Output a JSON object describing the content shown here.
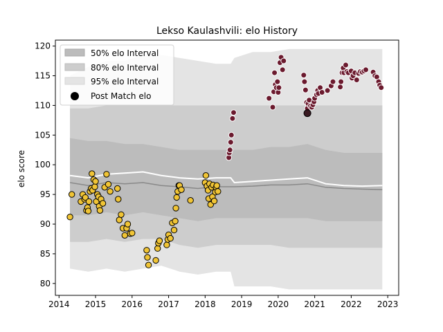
{
  "chart_data": {
    "type": "scatter",
    "title": "Lekso Kaulashvili: elo History",
    "xlabel": "",
    "ylabel": "elo score",
    "xlim": [
      2013.9,
      2023.3
    ],
    "ylim": [
      78,
      121
    ],
    "xticks": [
      2014,
      2015,
      2016,
      2017,
      2018,
      2019,
      2020,
      2021,
      2022,
      2023
    ],
    "yticks": [
      80,
      85,
      90,
      95,
      100,
      105,
      110,
      115,
      120
    ],
    "grid": false,
    "legend": {
      "placement": "top-left",
      "entries": [
        "50% elo Interval",
        "80% elo Interval",
        "95% elo Interval",
        "Post Match elo"
      ]
    },
    "colors": {
      "band95": "#e4e4e4",
      "band80": "#cdcdcd",
      "band50": "#bcbcbc",
      "median_line": "#888888",
      "mean_line": "#ffffff",
      "points_early": "#f0c435",
      "points_late": "#6b1a2e",
      "point_latest": "#3a1a22"
    },
    "bands": {
      "x": [
        2014.3,
        2014.8,
        2015.3,
        2015.8,
        2016.3,
        2016.8,
        2017.3,
        2017.8,
        2018.3,
        2018.7,
        2018.8,
        2019.3,
        2019.8,
        2020.3,
        2020.8,
        2021.3,
        2021.8,
        2022.3,
        2022.85
      ],
      "q025": [
        82.5,
        82.0,
        82.5,
        82.0,
        82.5,
        83.0,
        82.0,
        81.5,
        82.0,
        82.0,
        79.5,
        79.5,
        79.5,
        79.0,
        79.0,
        79.0,
        79.0,
        79.0,
        79.0
      ],
      "q10": [
        87.0,
        87.0,
        87.5,
        87.0,
        87.5,
        87.5,
        86.5,
        86.0,
        86.5,
        86.5,
        86.5,
        86.5,
        86.5,
        86.0,
        86.0,
        86.0,
        86.0,
        86.0,
        86.0
      ],
      "q25": [
        91.5,
        91.5,
        92.0,
        91.5,
        92.0,
        91.5,
        91.0,
        90.5,
        91.0,
        91.0,
        91.0,
        91.0,
        91.0,
        91.0,
        91.0,
        90.5,
        90.5,
        90.5,
        90.5
      ],
      "median": [
        97.0,
        96.5,
        97.0,
        96.8,
        97.0,
        96.5,
        96.3,
        96.0,
        96.3,
        96.3,
        96.3,
        96.4,
        96.6,
        96.6,
        96.8,
        96.2,
        96.0,
        95.9,
        95.8
      ],
      "mean": [
        98.2,
        97.8,
        98.4,
        98.6,
        98.8,
        98.2,
        97.8,
        97.6,
        97.8,
        97.8,
        97.0,
        97.2,
        97.4,
        97.6,
        97.8,
        96.8,
        96.5,
        96.4,
        96.5
      ],
      "q75": [
        104.5,
        104.0,
        104.0,
        103.5,
        103.5,
        103.0,
        102.5,
        102.5,
        102.5,
        102.5,
        102.5,
        102.5,
        103.0,
        103.0,
        103.5,
        102.5,
        102.0,
        102.0,
        102.0
      ],
      "q90": [
        109.5,
        109.5,
        110.0,
        110.0,
        110.0,
        110.0,
        110.0,
        110.0,
        110.0,
        110.0,
        110.0,
        110.0,
        110.0,
        110.0,
        110.0,
        110.0,
        110.0,
        110.0,
        110.0
      ],
      "q975": [
        115.0,
        116.5,
        117.5,
        117.5,
        118.5,
        118.5,
        118.0,
        117.5,
        117.0,
        117.0,
        118.0,
        119.0,
        119.0,
        119.5,
        119.5,
        119.5,
        119.5,
        119.5,
        119.5
      ]
    },
    "series": [
      {
        "x": [
          2014.3,
          2014.35,
          2014.6,
          2014.65,
          2014.7,
          2014.72,
          2014.75,
          2014.78,
          2014.8,
          2014.82,
          2014.85,
          2014.88,
          2014.9,
          2014.92,
          2014.95,
          2014.98,
          2015.0,
          2015.02,
          2015.05,
          2015.08,
          2015.1,
          2015.12,
          2015.15,
          2015.2,
          2015.25,
          2015.3,
          2015.35,
          2015.4,
          2015.6,
          2015.62,
          2015.65,
          2015.7,
          2015.75,
          2015.8,
          2015.85,
          2015.88,
          2015.95,
          2016.0,
          2016.4,
          2016.42,
          2016.45,
          2016.65,
          2016.7,
          2016.72,
          2016.75,
          2016.95,
          2016.98,
          2017.0,
          2017.05,
          2017.1,
          2017.15,
          2017.18,
          2017.2,
          2017.22,
          2017.25,
          2017.28,
          2017.3,
          2017.35,
          2017.6,
          2018.0,
          2018.02,
          2018.05,
          2018.08,
          2018.1,
          2018.12,
          2018.15,
          2018.18,
          2018.2,
          2018.22,
          2018.25,
          2018.28,
          2018.3,
          2018.32,
          2018.35
        ],
        "y": [
          91.2,
          95.0,
          93.8,
          95.0,
          94.2,
          94.5,
          92.3,
          92.8,
          92.2,
          93.8,
          95.5,
          96.0,
          98.5,
          95.7,
          97.5,
          96.3,
          97.2,
          93.8,
          95.0,
          94.6,
          93.0,
          92.3,
          94.2,
          93.5,
          96.2,
          98.4,
          96.7,
          95.5,
          96.0,
          94.2,
          90.7,
          91.6,
          89.3,
          88.1,
          89.3,
          90.0,
          88.4,
          88.5,
          85.6,
          84.4,
          83.1,
          83.9,
          85.9,
          86.8,
          87.2,
          86.5,
          87.4,
          88.2,
          87.6,
          90.2,
          89.0,
          90.5,
          92.7,
          94.5,
          95.5,
          96.5,
          96.5,
          95.8,
          94.0,
          97.0,
          98.2,
          96.4,
          95.7,
          94.3,
          96.8,
          93.3,
          96.2,
          94.6,
          96.6,
          93.9,
          95.4,
          96.2,
          96.5,
          95.5
        ]
      },
      {
        "x": [
          2018.65,
          2018.66,
          2018.68,
          2018.7,
          2018.72,
          2018.75,
          2018.78,
          2019.75,
          2019.85,
          2019.88,
          2019.9,
          2019.92,
          2019.95,
          2019.98,
          2020.0,
          2020.02,
          2020.05,
          2020.08,
          2020.12,
          2020.15,
          2020.7,
          2020.72,
          2020.75,
          2020.78,
          2020.8,
          2020.82,
          2020.85,
          2020.88,
          2020.92,
          2020.95,
          2020.98,
          2021.0,
          2021.05,
          2021.08,
          2021.1,
          2021.15,
          2021.2,
          2021.35,
          2021.45,
          2021.5,
          2021.7,
          2021.72,
          2021.75,
          2021.78,
          2021.8,
          2021.85,
          2021.88,
          2021.92,
          2022.0,
          2022.02,
          2022.05,
          2022.1,
          2022.15,
          2022.2,
          2022.25,
          2022.3,
          2022.35,
          2022.4,
          2022.6,
          2022.65,
          2022.7,
          2022.75,
          2022.78,
          2022.82
        ],
        "y": [
          101.2,
          102.0,
          102.5,
          103.8,
          105.0,
          107.8,
          108.8,
          111.2,
          109.7,
          112.3,
          115.5,
          113.5,
          113.0,
          114.0,
          112.2,
          113.0,
          117.2,
          118.1,
          116.0,
          117.5,
          115.1,
          114.0,
          112.6,
          110.5,
          109.5,
          110.3,
          110.9,
          109.9,
          109.7,
          110.1,
          110.6,
          111.2,
          111.8,
          112.5,
          112.0,
          113.0,
          112.2,
          112.5,
          113.3,
          114.0,
          113.1,
          114.0,
          115.5,
          116.3,
          115.5,
          116.8,
          115.7,
          115.5,
          115.8,
          114.6,
          115.0,
          115.5,
          114.3,
          115.4,
          115.7,
          115.6,
          115.8,
          116.0,
          115.6,
          115.0,
          114.8,
          114.0,
          113.4,
          113.0
        ]
      }
    ],
    "latest_point": {
      "x": 2020.8,
      "y": 108.7
    }
  }
}
